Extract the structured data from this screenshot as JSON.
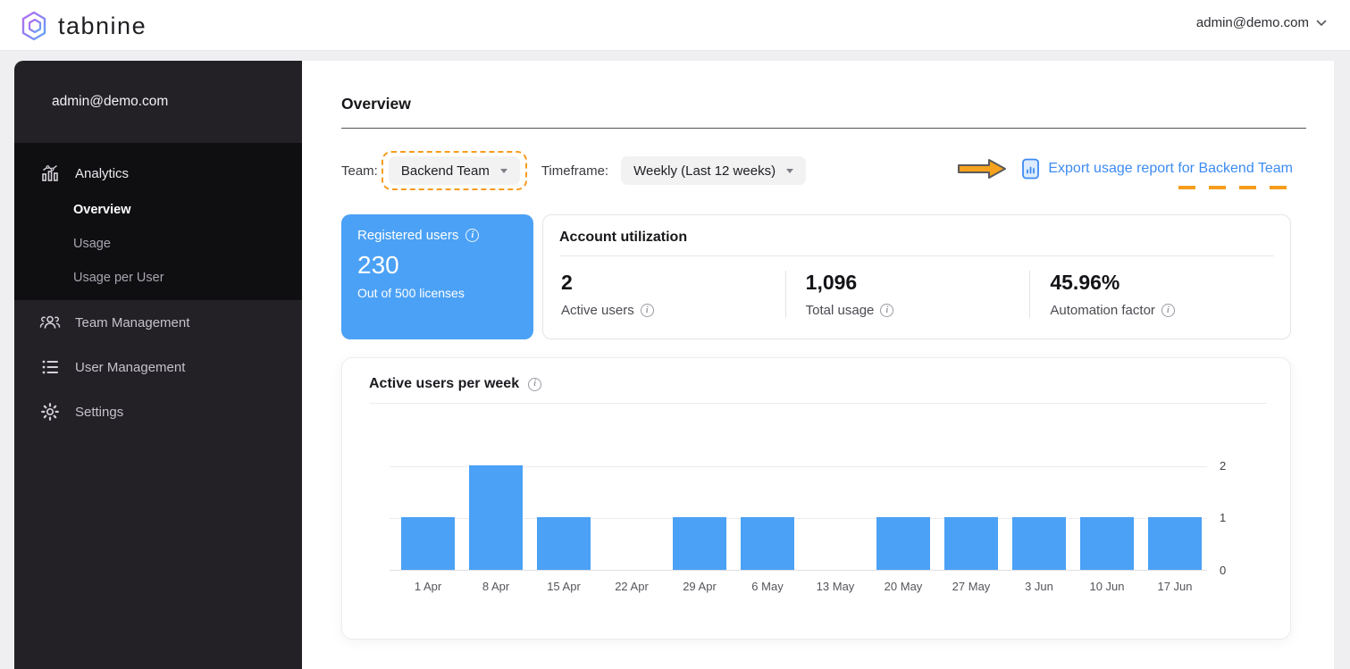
{
  "topbar": {
    "logo_text": "tabnine",
    "account_email": "admin@demo.com"
  },
  "sidebar": {
    "email": "admin@demo.com",
    "analytics": {
      "label": "Analytics",
      "children": [
        "Overview",
        "Usage",
        "Usage per User"
      ],
      "active_child": "Overview"
    },
    "items": [
      {
        "label": "Team Management"
      },
      {
        "label": "User Management"
      },
      {
        "label": "Settings"
      }
    ]
  },
  "main": {
    "page_title": "Overview",
    "filters": {
      "team_label": "Team:",
      "team_value": "Backend Team",
      "timeframe_label": "Timeframe:",
      "timeframe_value": "Weekly (Last 12 weeks)"
    },
    "export_link_text": "Export usage report for Backend Team",
    "registered_card": {
      "title": "Registered users",
      "value": "230",
      "subtitle": "Out of 500 licenses"
    },
    "utilization_card": {
      "title": "Account utilization",
      "metrics": [
        {
          "value": "2",
          "label": "Active users"
        },
        {
          "value": "1,096",
          "label": "Total usage"
        },
        {
          "value": "45.96%",
          "label": "Automation factor"
        }
      ]
    }
  },
  "chart_data": {
    "type": "bar",
    "title": "Active users per week",
    "categories": [
      "1 Apr",
      "8 Apr",
      "15 Apr",
      "22 Apr",
      "29 Apr",
      "6 May",
      "13 May",
      "20 May",
      "27 May",
      "3 Jun",
      "10 Jun",
      "17 Jun"
    ],
    "values": [
      1,
      2,
      1,
      0,
      1,
      1,
      0,
      1,
      1,
      1,
      1,
      1
    ],
    "ylim": [
      0,
      2
    ],
    "yticks": [
      2,
      1,
      0
    ],
    "grid": true,
    "y_axis_position": "right",
    "bar_color": "#4ba1f5"
  },
  "colors": {
    "accent_blue": "#4ba1f5",
    "link_blue": "#3d8bf2",
    "annotation_orange": "#f59c1d",
    "sidebar_bg": "#232026",
    "sidebar_active_bg": "#0f0e11",
    "page_bg": "#efeff1"
  }
}
